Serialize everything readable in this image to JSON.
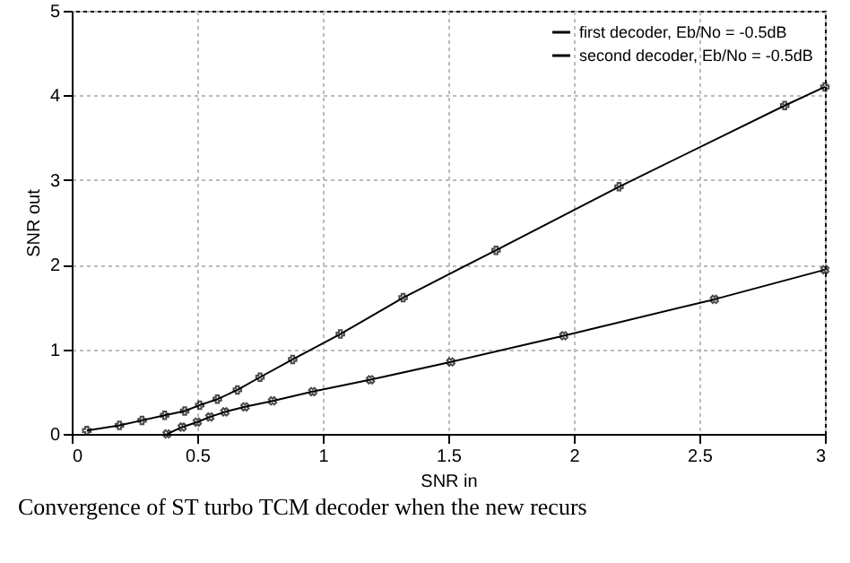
{
  "chart_data": {
    "type": "line",
    "xlabel": "SNR in",
    "ylabel": "SNR out",
    "annotations": [
      "Convergence of ST turbo TCM decoder when the new recurs"
    ],
    "xlim": [
      0,
      3
    ],
    "ylim": [
      0,
      5
    ],
    "xticks": [
      0,
      0.5,
      1,
      1.5,
      2,
      2.5,
      3
    ],
    "yticks": [
      0,
      1,
      2,
      3,
      4,
      5
    ],
    "grid": true,
    "legend": "top right",
    "marker": "cross",
    "series": [
      {
        "name": "first decoder, Eb/No = -0.5dB",
        "color": "#000000",
        "x": [
          0.06,
          0.19,
          0.28,
          0.37,
          0.45,
          0.51,
          0.58,
          0.66,
          0.75,
          0.88,
          1.07,
          1.32,
          1.69,
          2.18,
          2.84,
          3
        ],
        "values": [
          0.04,
          0.1,
          0.16,
          0.22,
          0.27,
          0.34,
          0.41,
          0.52,
          0.67,
          0.88,
          1.18,
          1.61,
          2.17,
          2.92,
          3.88,
          4.1
        ]
      },
      {
        "name": "second decoder, Eb/No = -0.5dB",
        "color": "#000000",
        "x": [
          0.38,
          0.44,
          0.5,
          0.55,
          0.61,
          0.69,
          0.8,
          0.96,
          1.19,
          1.51,
          1.96,
          2.56,
          3
        ],
        "values": [
          0,
          0.08,
          0.14,
          0.2,
          0.26,
          0.32,
          0.39,
          0.5,
          0.64,
          0.85,
          1.16,
          1.59,
          1.94
        ]
      }
    ]
  }
}
